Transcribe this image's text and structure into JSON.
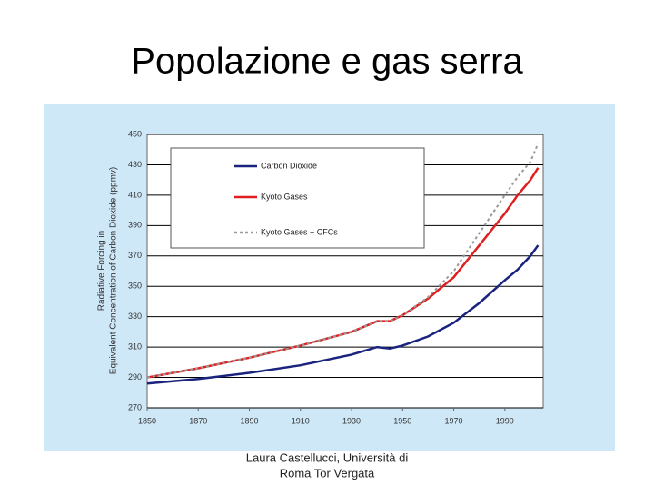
{
  "slide": {
    "title": "Popolazione e gas serra",
    "footer": [
      "Laura Castellucci, Università di",
      "Roma Tor Vergata"
    ]
  },
  "chart_data": {
    "type": "line",
    "ylabel": [
      "Radiative Forcing in",
      "Equivalent Concentration of Carbon Dioxide (ppmv)"
    ],
    "x": [
      1850,
      1870,
      1890,
      1910,
      1930,
      1940,
      1945,
      1950,
      1960,
      1970,
      1980,
      1990,
      1995,
      2000,
      2003
    ],
    "series": [
      {
        "name": "Carbon Dioxide",
        "color": "#1a237e",
        "dash": false,
        "values": [
          286,
          289,
          293,
          298,
          305,
          310,
          309,
          311,
          317,
          326,
          339,
          354,
          361,
          370,
          377
        ]
      },
      {
        "name": "Kyoto Gases",
        "color": "#e02020",
        "dash": false,
        "values": [
          290,
          296,
          303,
          311,
          320,
          327,
          327,
          331,
          342,
          356,
          377,
          398,
          410,
          420,
          428
        ]
      },
      {
        "name": "Kyoto Gases + CFCs",
        "color": "#999999",
        "dash": true,
        "values": [
          290,
          296,
          303,
          311,
          320,
          327,
          327,
          331,
          343,
          360,
          385,
          410,
          422,
          432,
          444
        ]
      }
    ],
    "xlim": [
      1850,
      2005
    ],
    "xticks": [
      1850,
      1870,
      1890,
      1910,
      1930,
      1950,
      1970,
      1990
    ],
    "ylim": [
      270,
      450
    ],
    "yticks": [
      270,
      290,
      310,
      330,
      350,
      370,
      390,
      410,
      430,
      450
    ],
    "grid": true
  }
}
